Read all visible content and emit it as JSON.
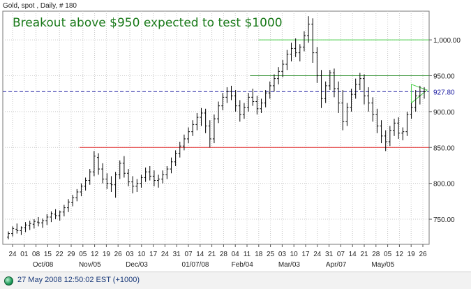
{
  "chart_data": {
    "type": "ohlc",
    "subtitle": "Gold, spot , Daily, # 180",
    "title": "Breakout above $950 expected to test $1000",
    "ylim": [
      715,
      1040
    ],
    "y_ticks": [
      {
        "value": 1000,
        "label": "1,000.00"
      },
      {
        "value": 950,
        "label": "950.00"
      },
      {
        "value": 900,
        "label": "900.00"
      },
      {
        "value": 850,
        "label": "850.00"
      },
      {
        "value": 800,
        "label": "800.00"
      },
      {
        "value": 750,
        "label": "750.00"
      }
    ],
    "current_price": {
      "value": 927.8,
      "label": "927.80",
      "color": "#1a1aa0"
    },
    "horizontal_lines": [
      {
        "value": 1000,
        "from_x": 0.6,
        "color": "#44cc44"
      },
      {
        "value": 950,
        "from_x": 0.58,
        "color": "#228822"
      },
      {
        "value": 850,
        "from_x": 0.18,
        "color": "#e02020"
      }
    ],
    "x_day_labels": [
      "24",
      "01",
      "08",
      "15",
      "22",
      "29",
      "05",
      "12",
      "19",
      "26",
      "03",
      "10",
      "17",
      "24",
      "31",
      "07",
      "14",
      "21",
      "28",
      "04",
      "11",
      "18",
      "25",
      "03",
      "10",
      "17",
      "24",
      "31",
      "07",
      "14",
      "21",
      "28",
      "05",
      "12",
      "19",
      "26"
    ],
    "x_month_labels": [
      "Oct/08",
      "Nov/05",
      "Dec/03",
      "01/07/08",
      "Feb/04",
      "Mar/03",
      "Apr/07",
      "May/05"
    ],
    "bars": [
      [
        725,
        733,
        722,
        730
      ],
      [
        730,
        740,
        726,
        737
      ],
      [
        736,
        744,
        730,
        734
      ],
      [
        734,
        740,
        728,
        738
      ],
      [
        738,
        746,
        732,
        742
      ],
      [
        741,
        748,
        735,
        744
      ],
      [
        743,
        750,
        737,
        747
      ],
      [
        746,
        753,
        740,
        745
      ],
      [
        745,
        751,
        738,
        748
      ],
      [
        748,
        757,
        742,
        753
      ],
      [
        753,
        761,
        746,
        758
      ],
      [
        757,
        764,
        750,
        755
      ],
      [
        755,
        762,
        748,
        760
      ],
      [
        760,
        770,
        754,
        766
      ],
      [
        766,
        778,
        760,
        774
      ],
      [
        773,
        784,
        768,
        780
      ],
      [
        780,
        792,
        775,
        788
      ],
      [
        788,
        800,
        782,
        796
      ],
      [
        796,
        808,
        790,
        804
      ],
      [
        804,
        820,
        798,
        816
      ],
      [
        816,
        845,
        810,
        838
      ],
      [
        836,
        842,
        812,
        820
      ],
      [
        820,
        828,
        800,
        806
      ],
      [
        806,
        814,
        792,
        800
      ],
      [
        800,
        810,
        788,
        798
      ],
      [
        798,
        816,
        780,
        812
      ],
      [
        812,
        832,
        806,
        828
      ],
      [
        828,
        838,
        808,
        814
      ],
      [
        814,
        820,
        796,
        802
      ],
      [
        802,
        810,
        786,
        796
      ],
      [
        796,
        806,
        788,
        800
      ],
      [
        800,
        812,
        794,
        808
      ],
      [
        808,
        822,
        802,
        816
      ],
      [
        816,
        824,
        804,
        810
      ],
      [
        810,
        818,
        796,
        804
      ],
      [
        804,
        812,
        794,
        806
      ],
      [
        806,
        818,
        800,
        812
      ],
      [
        812,
        824,
        806,
        820
      ],
      [
        820,
        836,
        814,
        830
      ],
      [
        830,
        846,
        824,
        842
      ],
      [
        842,
        858,
        836,
        852
      ],
      [
        852,
        868,
        846,
        862
      ],
      [
        862,
        878,
        856,
        872
      ],
      [
        872,
        888,
        866,
        882
      ],
      [
        882,
        898,
        874,
        892
      ],
      [
        892,
        905,
        880,
        898
      ],
      [
        898,
        904,
        870,
        880
      ],
      [
        880,
        888,
        850,
        862
      ],
      [
        862,
        896,
        856,
        890
      ],
      [
        890,
        914,
        884,
        908
      ],
      [
        908,
        926,
        902,
        920
      ],
      [
        920,
        934,
        912,
        928
      ],
      [
        928,
        936,
        916,
        922
      ],
      [
        922,
        930,
        900,
        908
      ],
      [
        908,
        916,
        886,
        896
      ],
      [
        896,
        912,
        890,
        906
      ],
      [
        906,
        926,
        900,
        920
      ],
      [
        920,
        932,
        908,
        914
      ],
      [
        914,
        922,
        896,
        904
      ],
      [
        904,
        918,
        898,
        912
      ],
      [
        912,
        930,
        906,
        926
      ],
      [
        926,
        942,
        918,
        936
      ],
      [
        936,
        952,
        928,
        946
      ],
      [
        946,
        962,
        938,
        956
      ],
      [
        956,
        972,
        948,
        966
      ],
      [
        966,
        986,
        958,
        980
      ],
      [
        980,
        996,
        970,
        988
      ],
      [
        988,
        1002,
        976,
        982
      ],
      [
        982,
        994,
        970,
        990
      ],
      [
        990,
        1012,
        984,
        1006
      ],
      [
        1006,
        1033,
        996,
        1022
      ],
      [
        1022,
        1030,
        968,
        982
      ],
      [
        982,
        990,
        940,
        950
      ],
      [
        950,
        958,
        905,
        918
      ],
      [
        918,
        942,
        912,
        936
      ],
      [
        936,
        958,
        930,
        954
      ],
      [
        954,
        960,
        920,
        932
      ],
      [
        932,
        942,
        898,
        912
      ],
      [
        912,
        930,
        874,
        886
      ],
      [
        886,
        912,
        880,
        906
      ],
      [
        906,
        932,
        900,
        924
      ],
      [
        924,
        946,
        918,
        938
      ],
      [
        938,
        954,
        930,
        946
      ],
      [
        946,
        952,
        910,
        922
      ],
      [
        922,
        934,
        900,
        912
      ],
      [
        912,
        920,
        886,
        896
      ],
      [
        896,
        904,
        870,
        880
      ],
      [
        880,
        888,
        856,
        866
      ],
      [
        866,
        874,
        845,
        858
      ],
      [
        858,
        880,
        852,
        874
      ],
      [
        874,
        890,
        866,
        884
      ],
      [
        884,
        892,
        862,
        870
      ],
      [
        870,
        878,
        860,
        872
      ],
      [
        872,
        900,
        866,
        896
      ],
      [
        896,
        912,
        890,
        906
      ],
      [
        906,
        930,
        900,
        922
      ],
      [
        922,
        936,
        910,
        928
      ],
      [
        928,
        934,
        918,
        927.8
      ]
    ]
  },
  "status_bar": {
    "timestamp": "27 May 2008 12:50:02  EST (+1000)"
  },
  "colors": {
    "grid": "#c8c8c8",
    "bar": "#000000",
    "frame": "#777777"
  }
}
